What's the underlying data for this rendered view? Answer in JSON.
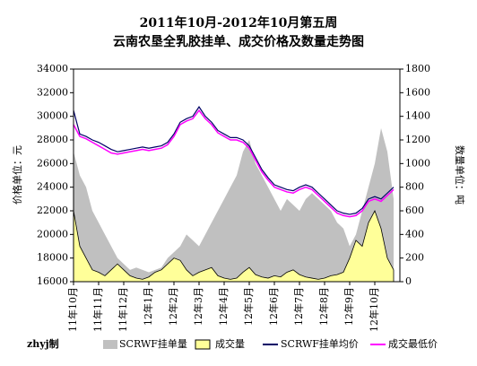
{
  "chart_data": {
    "type": "line",
    "title": "2011年10月-2012年10月第五周",
    "subtitle": "云南农垦全乳胶挂单、成交价格及数量走势图",
    "y_label": "价格单位：元",
    "y2_label": "数量单位：吨",
    "annotation": "zhyj制",
    "categories": [
      "11年10月",
      null,
      null,
      null,
      "11年11月",
      null,
      null,
      null,
      "11年12月",
      null,
      null,
      null,
      "12年1月",
      null,
      null,
      null,
      "12年2月",
      null,
      null,
      null,
      "12年3月",
      null,
      null,
      null,
      "12年4月",
      null,
      null,
      null,
      "12年5月",
      null,
      null,
      null,
      "12年6月",
      null,
      null,
      null,
      "12年7月",
      null,
      null,
      null,
      "12年8月",
      null,
      null,
      null,
      "12年9月",
      null,
      null,
      null,
      "12年10月",
      null,
      null,
      null
    ],
    "ylim": [
      16000,
      34000
    ],
    "yticks": [
      16000,
      18000,
      20000,
      22000,
      24000,
      26000,
      28000,
      30000,
      32000,
      34000
    ],
    "y2lim": [
      0,
      1800
    ],
    "y2ticks": [
      0,
      200,
      400,
      600,
      800,
      1000,
      1200,
      1400,
      1600,
      1800
    ],
    "series": [
      {
        "name": "SCRWF挂单量",
        "color": "#c0c0c0",
        "axis": "y2",
        "kind": "area",
        "values": [
          1100,
          900,
          800,
          600,
          500,
          400,
          300,
          200,
          150,
          100,
          120,
          100,
          80,
          100,
          120,
          200,
          250,
          300,
          400,
          350,
          300,
          400,
          500,
          600,
          700,
          800,
          900,
          1100,
          1200,
          1000,
          900,
          800,
          700,
          600,
          700,
          650,
          600,
          700,
          750,
          700,
          650,
          600,
          500,
          450,
          300,
          400,
          600,
          800,
          1000,
          1300,
          1100,
          700
        ]
      },
      {
        "name": "成交量",
        "color": "#ffff99",
        "axis": "y2",
        "kind": "area",
        "values": [
          600,
          300,
          200,
          100,
          80,
          50,
          100,
          150,
          100,
          50,
          30,
          20,
          40,
          80,
          100,
          150,
          200,
          180,
          100,
          50,
          80,
          100,
          120,
          50,
          30,
          20,
          30,
          80,
          120,
          60,
          40,
          30,
          50,
          40,
          80,
          100,
          60,
          40,
          30,
          20,
          30,
          50,
          60,
          80,
          200,
          350,
          300,
          500,
          600,
          450,
          200,
          100
        ]
      },
      {
        "name": "SCRWF挂单均价",
        "color": "#000066",
        "kind": "line",
        "values": [
          30500,
          28500,
          28300,
          28000,
          27800,
          27500,
          27200,
          27000,
          27100,
          27200,
          27300,
          27400,
          27300,
          27400,
          27500,
          27800,
          28500,
          29500,
          29800,
          30000,
          30800,
          30000,
          29500,
          28800,
          28500,
          28200,
          28200,
          28000,
          27500,
          26500,
          25500,
          24800,
          24200,
          24000,
          23800,
          23700,
          24000,
          24200,
          24000,
          23500,
          23000,
          22500,
          22000,
          21800,
          21700,
          21800,
          22200,
          23000,
          23200,
          23000,
          23500,
          24000
        ]
      },
      {
        "name": "成交最低价",
        "color": "#ff00ff",
        "kind": "line",
        "values": [
          29300,
          28300,
          28100,
          27800,
          27500,
          27200,
          26900,
          26800,
          26900,
          27000,
          27100,
          27200,
          27100,
          27200,
          27300,
          27600,
          28300,
          29300,
          29600,
          29800,
          30500,
          29800,
          29300,
          28600,
          28300,
          28000,
          28000,
          27800,
          27300,
          26300,
          25300,
          24600,
          24000,
          23800,
          23600,
          23500,
          23800,
          24000,
          23800,
          23300,
          22800,
          22300,
          21800,
          21600,
          21500,
          21600,
          22000,
          22800,
          23000,
          22800,
          23300,
          23800
        ]
      }
    ]
  }
}
